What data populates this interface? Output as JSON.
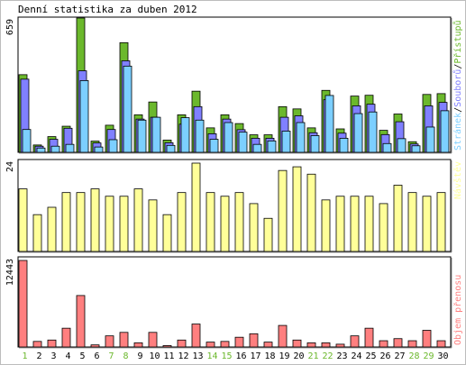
{
  "title": "Denní statistika za duben 2012",
  "colors": {
    "pristupu": "#6bb82c",
    "souboru": "#8080ff",
    "strane": "#7ccfff",
    "navstev": "#ffff99",
    "prenos": "#ff7f7f",
    "weekend_day": "#6bb82c",
    "weekday": "#000000"
  },
  "chart_data": [
    {
      "type": "bar",
      "panel": "hits",
      "ymax_label": "659",
      "legend_parts": [
        {
          "text": "Stránek",
          "color_key": "strane"
        },
        {
          "text": "/",
          "color_key": "weekday"
        },
        {
          "text": "Souborů",
          "color_key": "souboru"
        },
        {
          "text": "/",
          "color_key": "weekday"
        },
        {
          "text": "Přístupů",
          "color_key": "pristupu"
        }
      ],
      "ylim": [
        0,
        659
      ],
      "categories": [
        "1",
        "2",
        "3",
        "4",
        "5",
        "6",
        "7",
        "8",
        "9",
        "10",
        "11",
        "12",
        "13",
        "14",
        "15",
        "16",
        "17",
        "18",
        "19",
        "20",
        "21",
        "22",
        "23",
        "24",
        "25",
        "26",
        "27",
        "28",
        "29",
        "30"
      ],
      "series": [
        {
          "name": "Přístupů",
          "values": [
            381,
            36,
            77,
            128,
            659,
            55,
            133,
            538,
            184,
            247,
            60,
            184,
            300,
            120,
            184,
            141,
            86,
            86,
            224,
            213,
            120,
            304,
            115,
            276,
            280,
            108,
            188,
            52,
            284,
            288
          ]
        },
        {
          "name": "Souborů",
          "values": [
            359,
            30,
            64,
            118,
            400,
            46,
            112,
            449,
            163,
            172,
            47,
            138,
            224,
            91,
            163,
            111,
            69,
            69,
            172,
            179,
            96,
            258,
            94,
            228,
            236,
            87,
            150,
            41,
            228,
            245
          ]
        },
        {
          "name": "Stránek",
          "values": [
            112,
            21,
            30,
            39,
            352,
            26,
            62,
            423,
            158,
            172,
            34,
            170,
            158,
            64,
            146,
            99,
            39,
            56,
            104,
            146,
            82,
            279,
            69,
            190,
            198,
            43,
            67,
            32,
            124,
            204
          ]
        }
      ]
    },
    {
      "type": "bar",
      "panel": "visits",
      "ymax_label": "24",
      "legend": "Návštěv",
      "ylim": [
        0,
        24
      ],
      "categories": [
        "1",
        "2",
        "3",
        "4",
        "5",
        "6",
        "7",
        "8",
        "9",
        "10",
        "11",
        "12",
        "13",
        "14",
        "15",
        "16",
        "17",
        "18",
        "19",
        "20",
        "21",
        "22",
        "23",
        "24",
        "25",
        "26",
        "27",
        "28",
        "29",
        "30"
      ],
      "series": [
        {
          "name": "Návštěv",
          "values": [
            17,
            10,
            12,
            16,
            16,
            17,
            15,
            15,
            17,
            14,
            10,
            16,
            24,
            16,
            15,
            16,
            13,
            9,
            22,
            23,
            21,
            14,
            15,
            15,
            15,
            13,
            18,
            16,
            15,
            16
          ]
        }
      ]
    },
    {
      "type": "bar",
      "panel": "traffic",
      "ymax_label": "12443",
      "legend": "Objem přenosu",
      "ylim": [
        0,
        12443
      ],
      "categories": [
        "1",
        "2",
        "3",
        "4",
        "5",
        "6",
        "7",
        "8",
        "9",
        "10",
        "11",
        "12",
        "13",
        "14",
        "15",
        "16",
        "17",
        "18",
        "19",
        "20",
        "21",
        "22",
        "23",
        "24",
        "25",
        "26",
        "27",
        "28",
        "29",
        "30"
      ],
      "series": [
        {
          "name": "Objem přenosu",
          "values": [
            12443,
            800,
            1000,
            2700,
            7400,
            300,
            1600,
            2100,
            600,
            2100,
            200,
            1000,
            3300,
            700,
            800,
            1400,
            1900,
            700,
            3100,
            1000,
            600,
            600,
            400,
            1600,
            2700,
            900,
            1200,
            900,
            2400,
            900
          ]
        }
      ]
    }
  ],
  "x_labels": [
    "1",
    "2",
    "3",
    "4",
    "5",
    "6",
    "7",
    "8",
    "9",
    "10",
    "11",
    "12",
    "13",
    "14",
    "15",
    "16",
    "17",
    "18",
    "19",
    "20",
    "21",
    "22",
    "23",
    "24",
    "25",
    "26",
    "27",
    "28",
    "29",
    "30"
  ],
  "weekend_days": [
    1,
    7,
    8,
    14,
    15,
    21,
    22,
    28,
    29
  ]
}
